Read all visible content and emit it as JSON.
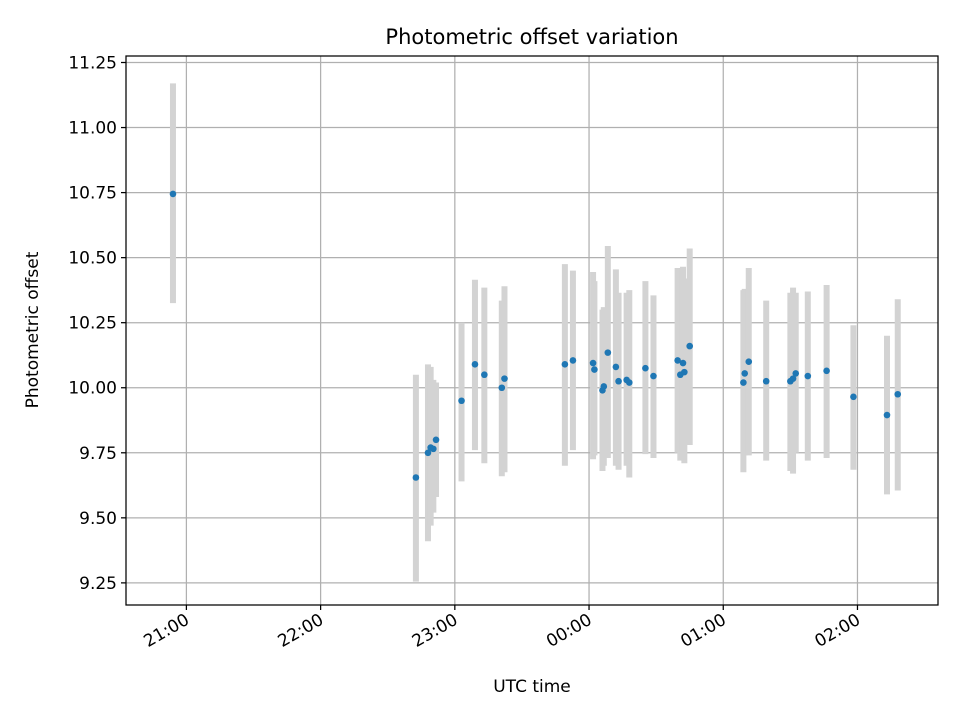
{
  "chart_data": {
    "type": "scatter",
    "title": "Photometric offset variation",
    "xlabel": "UTC time",
    "ylabel": "Photometric offset",
    "x_unit": "hours since midnight UTC (negative = previous day)",
    "xlim": [
      -3.45,
      2.6
    ],
    "ylim": [
      9.165,
      11.275
    ],
    "grid": true,
    "x_ticks": [
      {
        "value": -3.0,
        "label": "21:00"
      },
      {
        "value": -2.0,
        "label": "22:00"
      },
      {
        "value": -1.0,
        "label": "23:00"
      },
      {
        "value": 0.0,
        "label": "00:00"
      },
      {
        "value": 1.0,
        "label": "01:00"
      },
      {
        "value": 2.0,
        "label": "02:00"
      }
    ],
    "y_ticks": [
      {
        "value": 9.25,
        "label": "9.25"
      },
      {
        "value": 9.5,
        "label": "9.50"
      },
      {
        "value": 9.75,
        "label": "9.75"
      },
      {
        "value": 10.0,
        "label": "10.00"
      },
      {
        "value": 10.25,
        "label": "10.25"
      },
      {
        "value": 10.5,
        "label": "10.50"
      },
      {
        "value": 10.75,
        "label": "10.75"
      },
      {
        "value": 11.0,
        "label": "11.00"
      },
      {
        "value": 11.25,
        "label": "11.25"
      }
    ],
    "series": [
      {
        "marker_color": "#1f77b4",
        "errorbar_color": "#d3d3d3",
        "points": [
          {
            "x": -3.1,
            "y": 10.745,
            "lo": 10.325,
            "hi": 11.17
          },
          {
            "x": -1.29,
            "y": 9.655,
            "lo": 9.255,
            "hi": 10.05
          },
          {
            "x": -1.2,
            "y": 9.75,
            "lo": 9.41,
            "hi": 10.09
          },
          {
            "x": -1.18,
            "y": 9.77,
            "lo": 9.47,
            "hi": 10.08
          },
          {
            "x": -1.16,
            "y": 9.765,
            "lo": 9.52,
            "hi": 10.03
          },
          {
            "x": -1.14,
            "y": 9.8,
            "lo": 9.58,
            "hi": 10.02
          },
          {
            "x": -0.95,
            "y": 9.95,
            "lo": 9.64,
            "hi": 10.25
          },
          {
            "x": -0.85,
            "y": 10.09,
            "lo": 9.76,
            "hi": 10.415
          },
          {
            "x": -0.78,
            "y": 10.05,
            "lo": 9.71,
            "hi": 10.385
          },
          {
            "x": -0.65,
            "y": 10.0,
            "lo": 9.66,
            "hi": 10.335
          },
          {
            "x": -0.63,
            "y": 10.035,
            "lo": 9.675,
            "hi": 10.39
          },
          {
            "x": -0.18,
            "y": 10.09,
            "lo": 9.7,
            "hi": 10.475
          },
          {
            "x": -0.12,
            "y": 10.105,
            "lo": 9.76,
            "hi": 10.45
          },
          {
            "x": 0.03,
            "y": 10.095,
            "lo": 9.725,
            "hi": 10.445
          },
          {
            "x": 0.04,
            "y": 10.07,
            "lo": 9.74,
            "hi": 10.41
          },
          {
            "x": 0.1,
            "y": 9.99,
            "lo": 9.68,
            "hi": 10.3
          },
          {
            "x": 0.11,
            "y": 10.005,
            "lo": 9.7,
            "hi": 10.31
          },
          {
            "x": 0.14,
            "y": 10.135,
            "lo": 9.73,
            "hi": 10.545
          },
          {
            "x": 0.2,
            "y": 10.08,
            "lo": 9.7,
            "hi": 10.455
          },
          {
            "x": 0.22,
            "y": 10.025,
            "lo": 9.685,
            "hi": 10.365
          },
          {
            "x": 0.28,
            "y": 10.03,
            "lo": 9.7,
            "hi": 10.365
          },
          {
            "x": 0.3,
            "y": 10.02,
            "lo": 9.655,
            "hi": 10.375
          },
          {
            "x": 0.42,
            "y": 10.075,
            "lo": 9.745,
            "hi": 10.41
          },
          {
            "x": 0.48,
            "y": 10.045,
            "lo": 9.73,
            "hi": 10.355
          },
          {
            "x": 0.66,
            "y": 10.105,
            "lo": 9.75,
            "hi": 10.46
          },
          {
            "x": 0.68,
            "y": 10.05,
            "lo": 9.72,
            "hi": 10.38
          },
          {
            "x": 0.7,
            "y": 10.095,
            "lo": 9.725,
            "hi": 10.465
          },
          {
            "x": 0.71,
            "y": 10.06,
            "lo": 9.71,
            "hi": 10.42
          },
          {
            "x": 0.75,
            "y": 10.16,
            "lo": 9.78,
            "hi": 10.535
          },
          {
            "x": 1.15,
            "y": 10.02,
            "lo": 9.675,
            "hi": 10.375
          },
          {
            "x": 1.16,
            "y": 10.055,
            "lo": 9.74,
            "hi": 10.38
          },
          {
            "x": 1.19,
            "y": 10.1,
            "lo": 9.74,
            "hi": 10.46
          },
          {
            "x": 1.32,
            "y": 10.025,
            "lo": 9.72,
            "hi": 10.335
          },
          {
            "x": 1.5,
            "y": 10.025,
            "lo": 9.68,
            "hi": 10.365
          },
          {
            "x": 1.52,
            "y": 10.035,
            "lo": 9.67,
            "hi": 10.385
          },
          {
            "x": 1.54,
            "y": 10.055,
            "lo": 9.75,
            "hi": 10.365
          },
          {
            "x": 1.63,
            "y": 10.045,
            "lo": 9.72,
            "hi": 10.37
          },
          {
            "x": 1.77,
            "y": 10.065,
            "lo": 9.73,
            "hi": 10.395
          },
          {
            "x": 1.97,
            "y": 9.965,
            "lo": 9.685,
            "hi": 10.24
          },
          {
            "x": 2.22,
            "y": 9.895,
            "lo": 9.59,
            "hi": 10.2
          },
          {
            "x": 2.3,
            "y": 9.975,
            "lo": 9.605,
            "hi": 10.34
          }
        ]
      }
    ]
  }
}
